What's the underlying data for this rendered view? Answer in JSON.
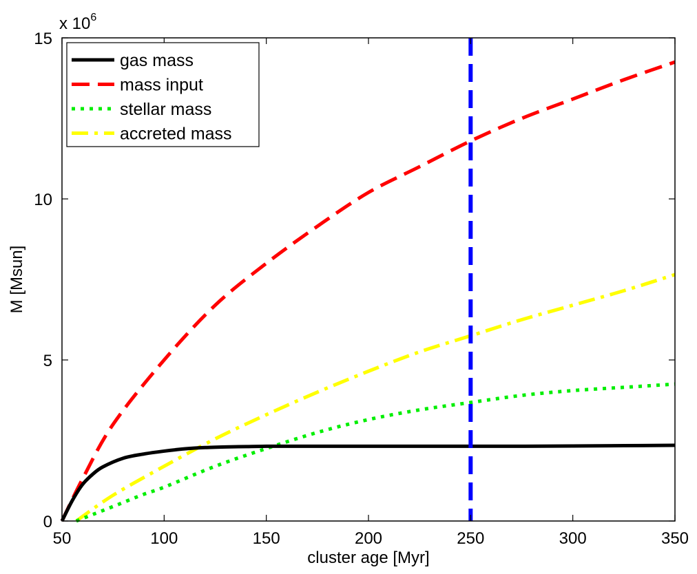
{
  "chart_data": {
    "type": "line",
    "xlabel": "cluster age [Myr]",
    "ylabel": "M [Msun]",
    "y_multiplier": {
      "base": "x 10",
      "exponent": "6"
    },
    "xlim": [
      50,
      350
    ],
    "ylim": [
      0,
      15
    ],
    "xticks": [
      50,
      100,
      150,
      200,
      250,
      300,
      350
    ],
    "yticks": [
      0,
      5,
      10,
      15
    ],
    "grid": false,
    "legend_position": "top-left",
    "series": [
      {
        "name": "gas mass",
        "color": "#000000",
        "style": "solid",
        "x": [
          50,
          55,
          60,
          65,
          70,
          80,
          90,
          100,
          110,
          120,
          130,
          140,
          150,
          175,
          200,
          225,
          250,
          275,
          300,
          325,
          350
        ],
        "y": [
          0,
          0.63,
          1.13,
          1.45,
          1.68,
          1.95,
          2.08,
          2.17,
          2.24,
          2.28,
          2.3,
          2.31,
          2.32,
          2.32,
          2.32,
          2.32,
          2.32,
          2.32,
          2.33,
          2.34,
          2.35
        ]
      },
      {
        "name": "mass input",
        "color": "#ff0000",
        "style": "dashed",
        "x": [
          50,
          60,
          75,
          100,
          125,
          150,
          175,
          200,
          225,
          250,
          275,
          300,
          325,
          350
        ],
        "y": [
          0,
          1.3,
          3.0,
          5.0,
          6.7,
          8.0,
          9.15,
          10.2,
          11.0,
          11.8,
          12.5,
          13.1,
          13.7,
          14.25
        ]
      },
      {
        "name": "stellar mass",
        "color": "#00ee00",
        "style": "dotted",
        "x": [
          57,
          65,
          75,
          90,
          100,
          125,
          150,
          175,
          200,
          225,
          250,
          275,
          300,
          325,
          350
        ],
        "y": [
          0,
          0.2,
          0.45,
          0.83,
          1.05,
          1.7,
          2.25,
          2.75,
          3.15,
          3.45,
          3.68,
          3.9,
          4.05,
          4.15,
          4.25
        ]
      },
      {
        "name": "accreted mass",
        "color": "#ffff00",
        "style": "dashdot",
        "x": [
          57,
          75,
          100,
          125,
          150,
          175,
          200,
          225,
          250,
          275,
          300,
          325,
          350
        ],
        "y": [
          0,
          0.8,
          1.7,
          2.55,
          3.3,
          4.0,
          4.65,
          5.25,
          5.75,
          6.25,
          6.7,
          7.15,
          7.65
        ]
      }
    ],
    "reference_lines": [
      {
        "name": "vertical marker",
        "x": 250,
        "color": "#0000ff",
        "style": "dashed"
      }
    ]
  }
}
